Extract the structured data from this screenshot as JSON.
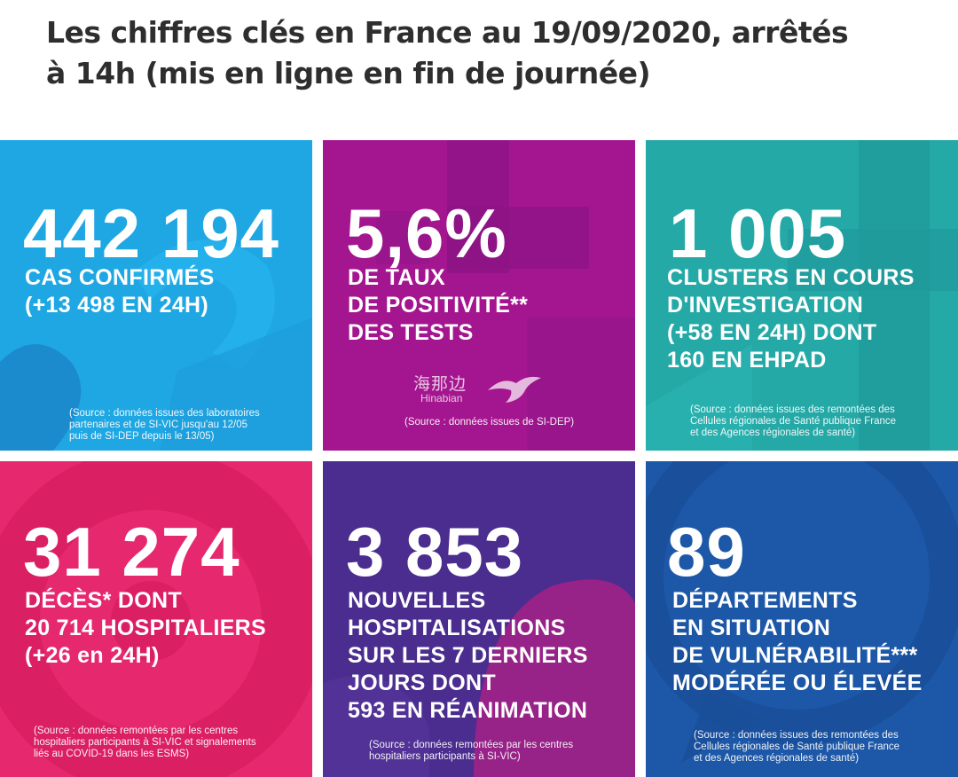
{
  "header": {
    "line1": "Les chiffres clés en France au 19/09/2020, arrêtés",
    "line2": "à 14h (mis en ligne en fin de journée)"
  },
  "watermark": {
    "cn": "海那边",
    "en": "Hinabian"
  },
  "colors": {
    "cyan": "#1fa7e3",
    "magenta": "#a4168f",
    "teal": "#25a9a7",
    "pink": "#e6286e",
    "purple": "#4a2d8e",
    "navy": "#1d58a8"
  },
  "tiles": [
    {
      "value": "442 194",
      "desc": [
        "CAS CONFIRMÉS",
        "(+13 498 EN 24H)"
      ],
      "source": [
        "(Source : données issues des laboratoires",
        "partenaires et de SI-VIC jusqu'au 12/05",
        "puis de SI-DEP depuis le 13/05)"
      ]
    },
    {
      "value": "5,6%",
      "desc": [
        "DE TAUX",
        "DE POSITIVITÉ**",
        "DES TESTS"
      ],
      "source": [
        "(Source : données issues de SI-DEP)"
      ]
    },
    {
      "value": "1 005",
      "desc": [
        "CLUSTERS EN COURS",
        "D'INVESTIGATION",
        "(+58 EN 24H) DONT",
        "160 EN EHPAD"
      ],
      "source": [
        "(Source : données issues des remontées des",
        "Cellules régionales de Santé publique France",
        "et des Agences régionales de santé)"
      ]
    },
    {
      "value": "31 274",
      "desc": [
        "DÉCÈS* DONT",
        "20 714 HOSPITALIERS",
        "(+26 en 24H)"
      ],
      "source": [
        "(Source : données remontées par les centres",
        "hospitaliers participants à SI-VIC et signalements",
        "liés au COVID-19 dans les ESMS)"
      ]
    },
    {
      "value": "3 853",
      "desc": [
        "NOUVELLES",
        "HOSPITALISATIONS",
        "SUR LES 7 DERNIERS",
        "JOURS DONT",
        "593 EN RÉANIMATION"
      ],
      "source": [
        "(Source : données remontées par les centres",
        "hospitaliers participants à SI-VIC)"
      ]
    },
    {
      "value": "89",
      "desc": [
        "DÉPARTEMENTS",
        "EN SITUATION",
        "DE VULNÉRABILITÉ***",
        "MODÉRÉE OU ÉLEVÉE"
      ],
      "source": [
        "(Source : données issues des remontées des",
        "Cellules régionales de Santé publique France",
        "et des Agences régionales de santé)"
      ]
    }
  ]
}
